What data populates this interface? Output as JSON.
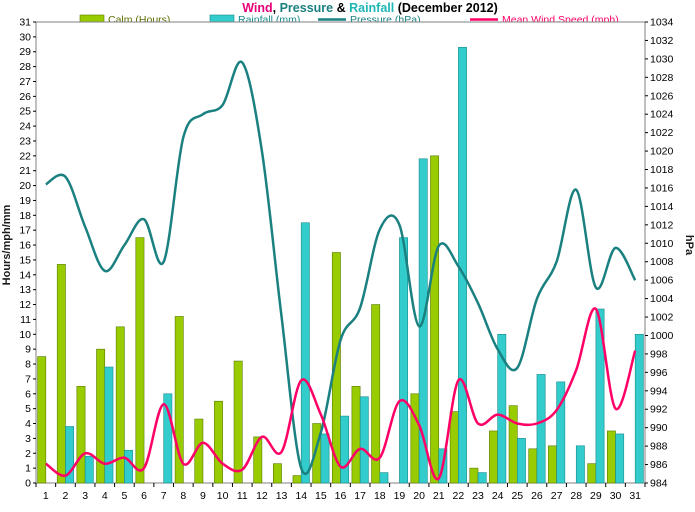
{
  "chart_data": {
    "type": "bar+line",
    "title_parts": [
      {
        "text": "Wind",
        "color": "#e6007a"
      },
      {
        "text": ", ",
        "color": "#000000"
      },
      {
        "text": "Pressure",
        "color": "#1a7f7f"
      },
      {
        "text": " & ",
        "color": "#000000"
      },
      {
        "text": "Rainfall",
        "color": "#1fb6b6"
      },
      {
        "text": " (December 2012)",
        "color": "#000000"
      }
    ],
    "ylabel": "Hours/mph/mm",
    "y2label": "hPa",
    "ylim": [
      0,
      31
    ],
    "y2lim": [
      984,
      1034
    ],
    "y2_tick_step": 2,
    "x": [
      1,
      2,
      3,
      4,
      5,
      6,
      7,
      8,
      9,
      10,
      11,
      12,
      13,
      14,
      15,
      16,
      17,
      18,
      19,
      20,
      21,
      22,
      23,
      24,
      25,
      26,
      27,
      28,
      29,
      30,
      31
    ],
    "colors": {
      "calm": "#99cc00",
      "calm_border": "#5a7a00",
      "rainfall": "#33cccc",
      "rainfall_border": "#1a8a8a",
      "pressure": "#1a8080",
      "wind": "#ff0066"
    },
    "series": [
      {
        "name": "Calm (Hours)",
        "kind": "bar",
        "axis": "left",
        "values": [
          8.5,
          14.7,
          6.5,
          9.0,
          10.5,
          16.5,
          0,
          11.2,
          4.3,
          5.5,
          8.2,
          3.1,
          1.3,
          0.5,
          4.0,
          15.5,
          6.5,
          12.0,
          0,
          6.0,
          22.0,
          4.8,
          1.0,
          3.5,
          5.2,
          2.3,
          2.5,
          0,
          1.3,
          3.5,
          0
        ]
      },
      {
        "name": "Rainfall (mm)",
        "kind": "bar",
        "axis": "left",
        "values": [
          0,
          3.8,
          1.8,
          7.8,
          2.2,
          0,
          6.0,
          0,
          0,
          0,
          0,
          0,
          0,
          17.5,
          3.3,
          4.5,
          5.8,
          0.7,
          16.5,
          21.8,
          2.3,
          29.3,
          0.7,
          10.0,
          3.0,
          7.3,
          6.8,
          2.5,
          11.7,
          3.3,
          10.0
        ]
      },
      {
        "name": "Pressure (hPa)",
        "kind": "line",
        "axis": "right",
        "values": [
          1016.4,
          1017.2,
          1011.8,
          1007.0,
          1009.8,
          1012.6,
          1008.0,
          1021.5,
          1024.0,
          1025.0,
          1029.6,
          1020.0,
          1002.0,
          985.6,
          989.5,
          999.5,
          1003.0,
          1011.5,
          1012.0,
          1001.0,
          1009.7,
          1007.5,
          1003.5,
          998.5,
          996.5,
          1004.0,
          1008.0,
          1015.8,
          1005.2,
          1009.5,
          1006.0
        ]
      },
      {
        "name": "Mean Wind Speed (mph)",
        "kind": "line",
        "axis": "left",
        "values": [
          1.3,
          0.5,
          2.0,
          1.3,
          1.7,
          1.0,
          5.3,
          1.3,
          2.7,
          1.3,
          0.9,
          3.1,
          2.1,
          6.9,
          4.6,
          1.1,
          2.3,
          1.7,
          5.5,
          3.9,
          0.3,
          6.9,
          4.0,
          4.6,
          4.0,
          4.0,
          4.9,
          7.6,
          11.7,
          5.0,
          8.9
        ]
      }
    ],
    "legend": "top",
    "grid": false
  }
}
